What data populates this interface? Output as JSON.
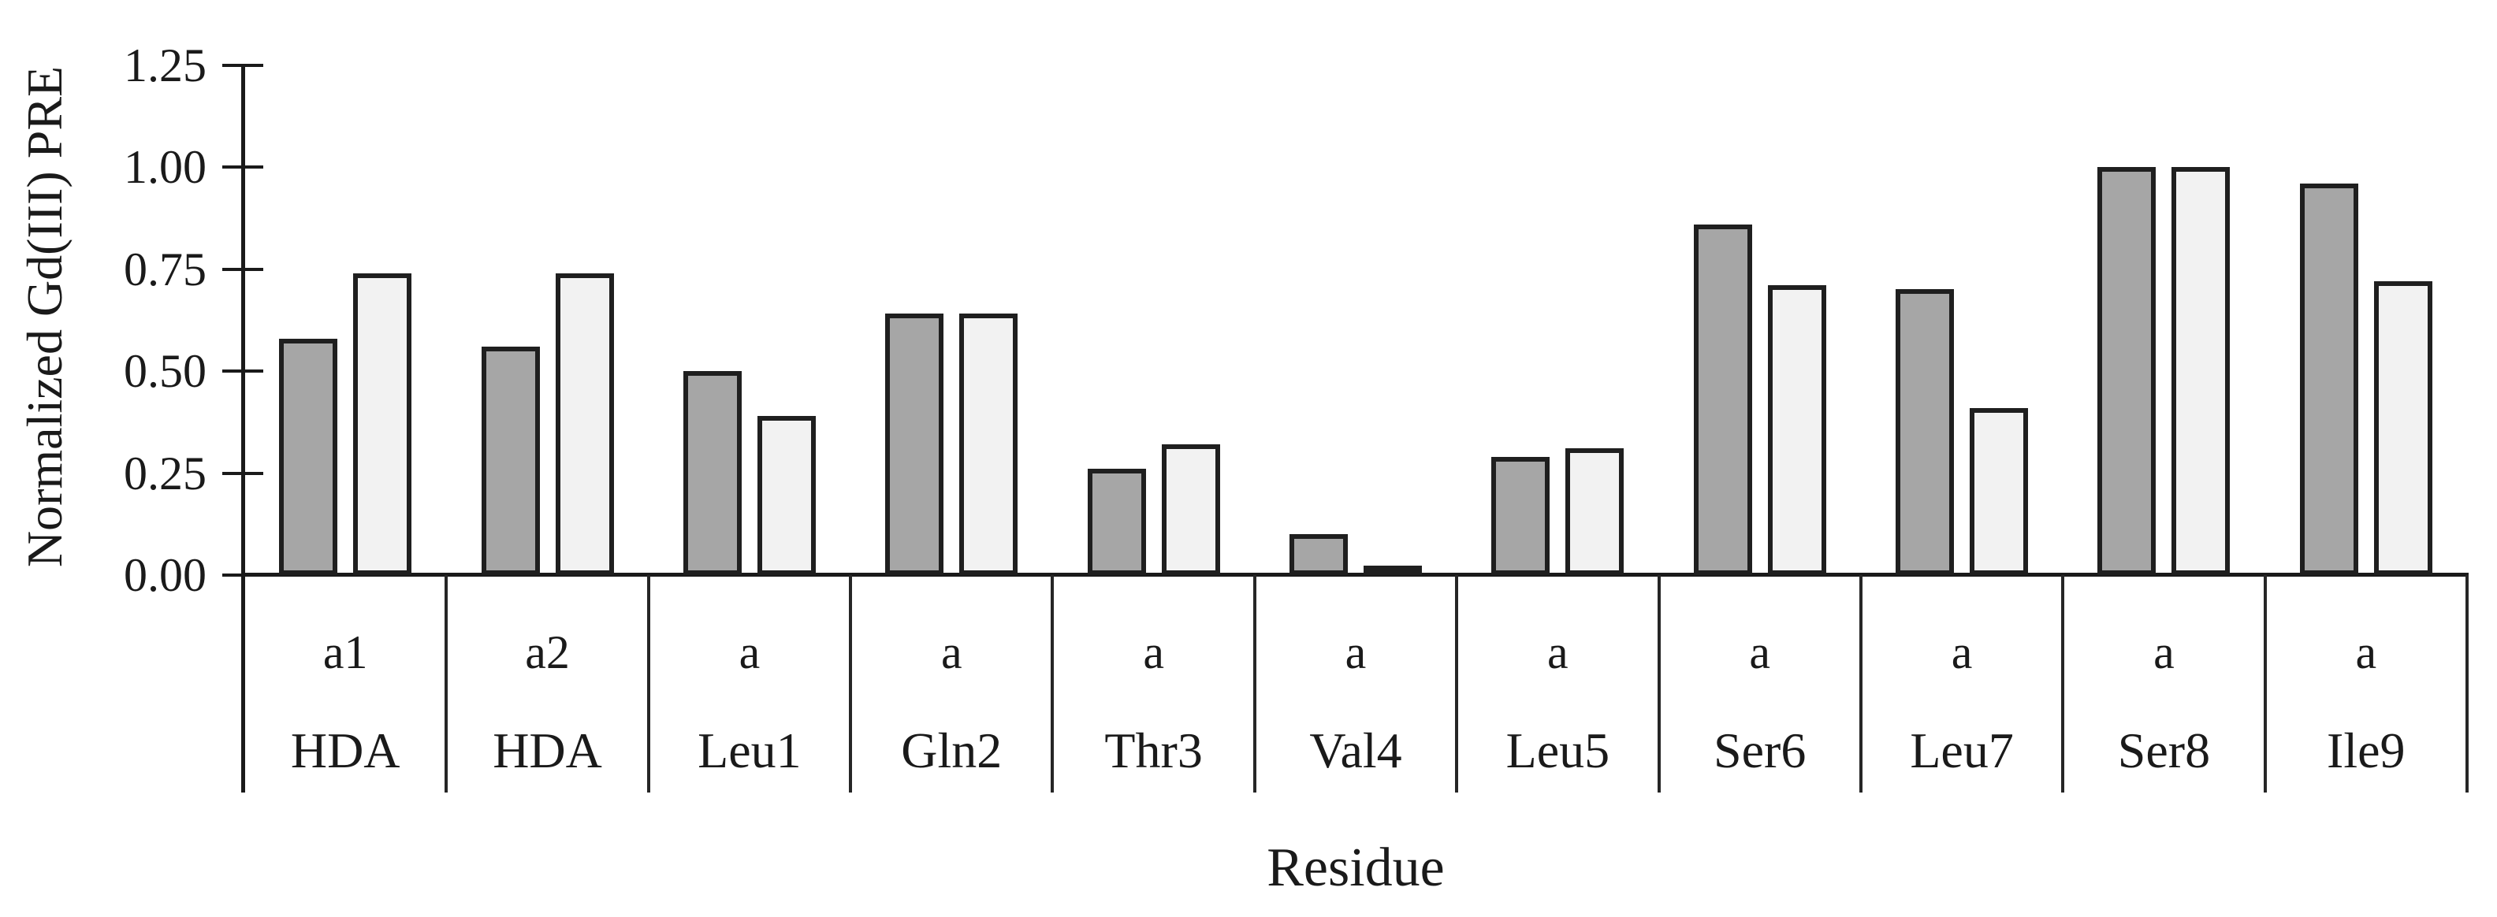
{
  "page": {
    "background": "#ffffff",
    "text_color": "#1a1a1a"
  },
  "chart_data": {
    "type": "bar",
    "title": "",
    "xlabel": "Residue",
    "ylabel": "Normalized Gd(III) PRE",
    "ylim": [
      0,
      1.25
    ],
    "ytick_step": 0.25,
    "ytick_labels": [
      "0.00",
      "0.25",
      "0.50",
      "0.75",
      "1.00",
      "1.25"
    ],
    "grid": "off",
    "legend_position": "none",
    "categories": [
      {
        "proton": "a1",
        "residue": "HDA"
      },
      {
        "proton": "a2",
        "residue": "HDA"
      },
      {
        "proton": "a",
        "residue": "Leu1"
      },
      {
        "proton": "a",
        "residue": "Gln2"
      },
      {
        "proton": "a",
        "residue": "Thr3"
      },
      {
        "proton": "a",
        "residue": "Val4"
      },
      {
        "proton": "a",
        "residue": "Leu5"
      },
      {
        "proton": "a",
        "residue": "Ser6"
      },
      {
        "proton": "a",
        "residue": "Leu7"
      },
      {
        "proton": "a",
        "residue": "Ser8"
      },
      {
        "proton": "a",
        "residue": "Ile9"
      }
    ],
    "series": [
      {
        "id": "dark-gray",
        "fill": "#a6a6a6",
        "border": "#1f1f1f",
        "values": [
          0.58,
          0.56,
          0.5,
          0.64,
          0.26,
          0.1,
          0.29,
          0.86,
          0.7,
          1.0,
          0.96
        ]
      },
      {
        "id": "light-gray",
        "fill": "#f2f2f2",
        "border": "#1f1f1f",
        "values": [
          0.74,
          0.74,
          0.39,
          0.64,
          0.32,
          0.02,
          0.31,
          0.71,
          0.41,
          1.0,
          0.72
        ]
      }
    ]
  }
}
